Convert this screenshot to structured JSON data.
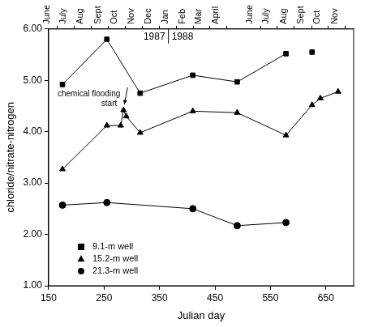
{
  "chart_data": {
    "type": "line",
    "x_label": "Julian day",
    "y_label": "chloride/nitrate-nitrogen",
    "xlim": [
      150,
      700
    ],
    "xticks": [
      150,
      250,
      350,
      450,
      550,
      650
    ],
    "ylim": [
      1,
      6
    ],
    "yticks": [
      {
        "value": 1,
        "label": "1.00"
      },
      {
        "value": 2,
        "label": "2.00"
      },
      {
        "value": 3,
        "label": "3.00"
      },
      {
        "value": 4,
        "label": "4.00"
      },
      {
        "value": 5,
        "label": "5.00"
      },
      {
        "value": 6,
        "label": "6.00"
      }
    ],
    "top_axis": {
      "ticks": [
        {
          "value": 166,
          "label": "June"
        },
        {
          "value": 196,
          "label": "July"
        },
        {
          "value": 227,
          "label": "Aug"
        },
        {
          "value": 258,
          "label": "Sept"
        },
        {
          "value": 288,
          "label": "Oct"
        },
        {
          "value": 319,
          "label": "Nov"
        },
        {
          "value": 349,
          "label": "Dec"
        },
        {
          "value": 380,
          "label": "Jan"
        },
        {
          "value": 411,
          "label": "Feb"
        },
        {
          "value": 440,
          "label": "Mar"
        },
        {
          "value": 471,
          "label": "April"
        },
        {
          "value": 532,
          "label": "June"
        },
        {
          "value": 562,
          "label": "July"
        },
        {
          "value": 593,
          "label": "Aug"
        },
        {
          "value": 624,
          "label": "Sept"
        },
        {
          "value": 654,
          "label": "Oct"
        },
        {
          "value": 685,
          "label": "Nov"
        }
      ],
      "years": [
        "1987",
        "1988"
      ],
      "year_boundary": 366
    },
    "series": [
      {
        "name": "9.1-m well",
        "marker": "square",
        "color": "#000000",
        "x": [
          175,
          255,
          315,
          410,
          490,
          578,
          null,
          625
        ],
        "values": [
          4.92,
          5.8,
          4.75,
          5.1,
          4.97,
          5.52,
          null,
          5.55
        ]
      },
      {
        "name": "15.2-m well",
        "marker": "triangle",
        "color": "#000000",
        "x": [
          175,
          255,
          280,
          285,
          290,
          315,
          410,
          490,
          578,
          625,
          640,
          672
        ],
        "values": [
          3.27,
          4.12,
          4.12,
          4.42,
          4.3,
          3.98,
          4.4,
          4.37,
          3.93,
          4.52,
          4.65,
          4.78
        ]
      },
      {
        "name": "21.3-m well",
        "marker": "circle",
        "color": "#000000",
        "x": [
          175,
          255,
          410,
          490,
          578
        ],
        "values": [
          2.57,
          2.62,
          2.5,
          2.17,
          2.23
        ]
      }
    ],
    "annotations": [
      {
        "text": "chemical flooding start",
        "x": 285,
        "y": 4.42
      }
    ],
    "legend": "lower left",
    "grid": false
  }
}
